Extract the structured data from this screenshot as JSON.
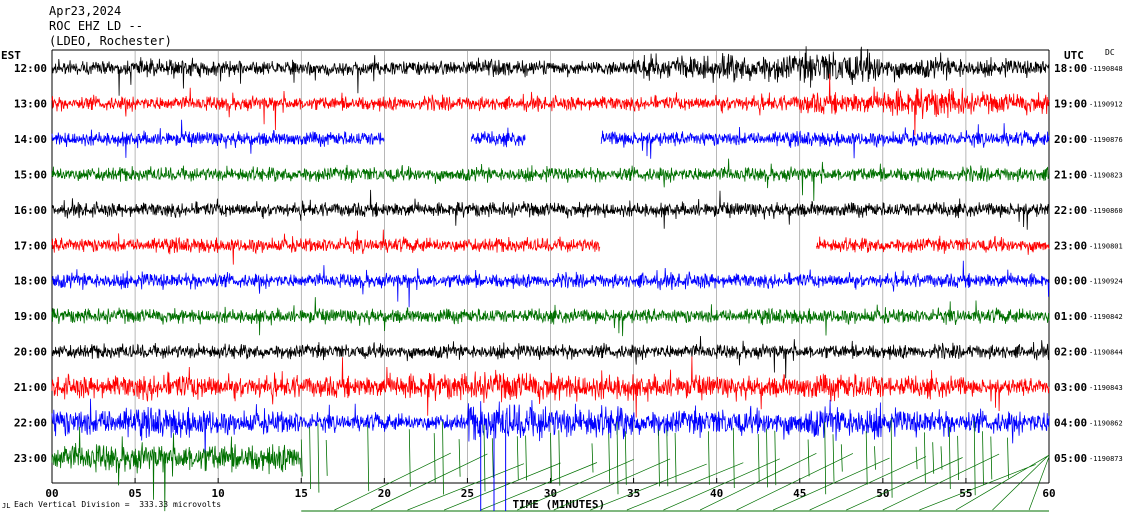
{
  "header": {
    "date": "Apr23,2024",
    "station": "ROC EHZ LD --",
    "network": "(LDEO, Rochester)"
  },
  "timezones": {
    "left": "EST",
    "right": "UTC",
    "dc": "DC"
  },
  "footer": {
    "mark": "JL",
    "scale_text": "Each Vertical Division =  333.33 microvolts"
  },
  "chart_data": {
    "type": "line",
    "title": "",
    "xlabel": "TIME (MINUTES)",
    "xlim": [
      0,
      60
    ],
    "x_ticks": [
      "00",
      "05",
      "10",
      "15",
      "20",
      "25",
      "30",
      "35",
      "40",
      "45",
      "50",
      "55",
      "60"
    ],
    "grid": "vertical lines every 5 minutes",
    "trace_colors": [
      "#000000",
      "#ff0000",
      "#0000ff",
      "#007000"
    ],
    "rows": [
      {
        "left": "12:00",
        "right": "18:00",
        "dc": "-1190848",
        "color": "#000000",
        "gaps": [],
        "amp": [
          1.0,
          1.2,
          1.0,
          1.0,
          1.0,
          1.1,
          1.0,
          1.6,
          1.9,
          2.3,
          1.5,
          1.2
        ]
      },
      {
        "left": "13:00",
        "right": "19:00",
        "dc": "-1190912",
        "color": "#ff0000",
        "gaps": [],
        "amp": [
          1.0,
          1.0,
          1.0,
          1.0,
          1.0,
          1.0,
          1.0,
          1.0,
          1.1,
          1.5,
          2.0,
          1.4
        ]
      },
      {
        "left": "14:00",
        "right": "20:00",
        "dc": "-1190876",
        "color": "#0000ff",
        "gaps": [
          [
            20,
            25.2
          ],
          [
            28.5,
            33
          ]
        ],
        "amp": [
          1.0,
          1.0,
          1.0,
          1.0,
          1.0,
          1.0,
          1.1,
          1.0,
          1.0,
          1.0,
          1.0,
          1.0
        ]
      },
      {
        "left": "15:00",
        "right": "21:00",
        "dc": "-1190823",
        "color": "#007000",
        "gaps": [],
        "amp": [
          1.0,
          1.0,
          1.0,
          1.0,
          1.0,
          1.0,
          1.0,
          1.0,
          1.0,
          1.0,
          1.0,
          1.0
        ]
      },
      {
        "left": "16:00",
        "right": "22:00",
        "dc": "-1190860",
        "color": "#000000",
        "gaps": [],
        "amp": [
          1.0,
          1.0,
          1.0,
          1.0,
          1.0,
          1.0,
          1.0,
          1.0,
          1.0,
          1.0,
          1.0,
          1.0
        ]
      },
      {
        "left": "17:00",
        "right": "23:00",
        "dc": "-1190801",
        "color": "#ff0000",
        "gaps": [
          [
            33,
            46
          ]
        ],
        "amp": [
          1.0,
          1.0,
          1.0,
          1.0,
          1.0,
          1.0,
          1.0,
          1.0,
          1.0,
          1.0,
          1.0,
          1.0
        ]
      },
      {
        "left": "18:00",
        "right": "00:00",
        "dc": "-1190924",
        "color": "#0000ff",
        "gaps": [],
        "amp": [
          1.1,
          1.1,
          1.0,
          1.0,
          1.0,
          1.0,
          1.0,
          1.1,
          1.0,
          1.0,
          1.0,
          1.0
        ]
      },
      {
        "left": "19:00",
        "right": "01:00",
        "dc": "-1190842",
        "color": "#007000",
        "gaps": [],
        "amp": [
          1.0,
          1.0,
          1.0,
          1.0,
          1.0,
          1.0,
          1.0,
          1.0,
          1.0,
          1.0,
          1.0,
          1.0
        ]
      },
      {
        "left": "20:00",
        "right": "02:00",
        "dc": "-1190844",
        "color": "#000000",
        "gaps": [],
        "amp": [
          1.0,
          1.0,
          1.0,
          1.0,
          1.0,
          1.0,
          1.0,
          1.0,
          1.0,
          1.0,
          1.0,
          1.0
        ]
      },
      {
        "left": "21:00",
        "right": "03:00",
        "dc": "-1190843",
        "color": "#ff0000",
        "gaps": [],
        "amp": [
          1.6,
          1.8,
          1.6,
          1.5,
          1.8,
          2.0,
          1.8,
          1.6,
          1.5,
          1.8,
          1.5,
          1.2
        ]
      },
      {
        "left": "22:00",
        "right": "04:00",
        "dc": "-1190862",
        "color": "#0000ff",
        "gaps": [],
        "amp": [
          2.0,
          2.0,
          1.6,
          1.2,
          1.2,
          2.6,
          2.2,
          1.8,
          1.8,
          2.2,
          1.8,
          1.6
        ]
      },
      {
        "left": "23:00",
        "right": "05:00",
        "dc": "-1190873",
        "color": "#007000",
        "gaps": [],
        "amp": [
          2.0,
          2.0,
          2.0,
          3.0,
          3.0,
          3.0,
          3.0,
          3.0,
          3.0,
          3.0,
          3.0,
          3.0
        ],
        "end_minute": 15,
        "spikes_from": 15
      }
    ]
  }
}
